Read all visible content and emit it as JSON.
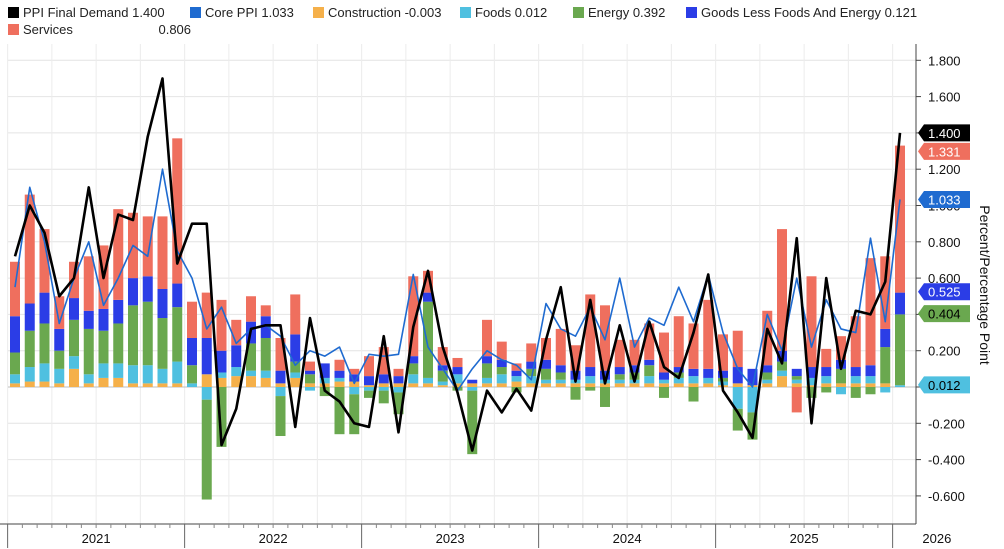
{
  "legend": [
    {
      "key": "ppi",
      "label": "PPI Final Demand",
      "value": "1.400",
      "color": "#000000"
    },
    {
      "key": "core",
      "label": "Core PPI",
      "value": "1.033",
      "color": "#1f6bd0"
    },
    {
      "key": "construction",
      "label": "Construction",
      "value": "-0.003",
      "color": "#f5b04a"
    },
    {
      "key": "foods",
      "label": "Foods",
      "value": "0.012",
      "color": "#4fc0e0"
    },
    {
      "key": "energy",
      "label": "Energy",
      "value": "0.392",
      "color": "#6aa84f"
    },
    {
      "key": "goods",
      "label": "Goods Less Foods And Energy",
      "value": "0.121",
      "color": "#2b3de6"
    },
    {
      "key": "services",
      "label": "Services",
      "value": "0.806",
      "color": "#ef6f5e"
    }
  ],
  "chart_data": {
    "type": "bar",
    "stacked": true,
    "ylabel": "Percent/Percentage Point",
    "ylim": [
      -0.75,
      1.95
    ],
    "yticks": [
      "1.800",
      "1.600",
      "1.400",
      "1.200",
      "1.000",
      "0.800",
      "0.600",
      "0.400",
      "0.200",
      "0.000",
      "-0.200",
      "-0.400",
      "-0.600"
    ],
    "grid": true,
    "y_axis_side": "right",
    "x_labels": [
      "2021",
      "2022",
      "2023",
      "2024",
      "2025",
      "2026"
    ],
    "x_start": "2021-01",
    "x_end": "2026-01",
    "categories": [
      "2021-01",
      "2021-02",
      "2021-03",
      "2021-04",
      "2021-05",
      "2021-06",
      "2021-07",
      "2021-08",
      "2021-09",
      "2021-10",
      "2021-11",
      "2021-12",
      "2022-01",
      "2022-02",
      "2022-03",
      "2022-04",
      "2022-05",
      "2022-06",
      "2022-07",
      "2022-08",
      "2022-09",
      "2022-10",
      "2022-11",
      "2022-12",
      "2023-01",
      "2023-02",
      "2023-03",
      "2023-04",
      "2023-05",
      "2023-06",
      "2023-07",
      "2023-08",
      "2023-09",
      "2023-10",
      "2023-11",
      "2023-12",
      "2024-01",
      "2024-02",
      "2024-03",
      "2024-04",
      "2024-05",
      "2024-06",
      "2024-07",
      "2024-08",
      "2024-09",
      "2024-10",
      "2024-11",
      "2024-12",
      "2025-01",
      "2025-02",
      "2025-03",
      "2025-04",
      "2025-05",
      "2025-06",
      "2025-07",
      "2025-08",
      "2025-09",
      "2025-10",
      "2025-11",
      "2025-12",
      "2026-01"
    ],
    "bar_series": [
      {
        "key": "construction",
        "color": "#f5b04a",
        "values": [
          0.02,
          0.03,
          0.03,
          0.02,
          0.1,
          0.02,
          0.05,
          0.05,
          0.02,
          0.02,
          0.02,
          0.02,
          0.0,
          0.07,
          0.05,
          0.06,
          0.06,
          0.05,
          0.02,
          0.05,
          0.02,
          0.02,
          0.03,
          0.03,
          0.01,
          0.02,
          0.02,
          0.02,
          0.02,
          0.01,
          0.02,
          0.02,
          0.02,
          0.02,
          0.03,
          0.02,
          0.02,
          0.02,
          0.02,
          0.02,
          0.02,
          0.02,
          0.02,
          0.02,
          0.02,
          0.02,
          0.02,
          0.02,
          0.01,
          0.02,
          0.01,
          0.02,
          0.06,
          0.02,
          0.01,
          0.02,
          0.02,
          0.02,
          0.02,
          0.02,
          0.0
        ]
      },
      {
        "key": "foods",
        "color": "#4fc0e0",
        "values": [
          0.05,
          0.08,
          0.1,
          0.08,
          0.07,
          0.05,
          0.08,
          0.08,
          0.1,
          0.1,
          0.08,
          0.12,
          0.02,
          -0.07,
          0.03,
          0.05,
          0.03,
          0.04,
          -0.05,
          0.03,
          -0.02,
          0.03,
          0.02,
          -0.04,
          -0.02,
          -0.02,
          -0.03,
          0.05,
          0.03,
          0.02,
          0.05,
          -0.02,
          0.03,
          0.05,
          0.03,
          0.04,
          0.02,
          0.02,
          0.02,
          0.04,
          0.02,
          0.02,
          0.02,
          0.04,
          0.02,
          0.03,
          0.04,
          0.03,
          0.02,
          -0.12,
          -0.14,
          0.02,
          0.03,
          0.02,
          0.04,
          0.04,
          -0.04,
          0.04,
          0.04,
          -0.03,
          0.01
        ]
      },
      {
        "key": "energy",
        "color": "#6aa84f",
        "values": [
          0.12,
          0.2,
          0.22,
          0.1,
          0.2,
          0.25,
          0.18,
          0.22,
          0.33,
          0.35,
          0.28,
          0.3,
          0.1,
          -0.55,
          -0.33,
          0.0,
          0.15,
          0.18,
          -0.22,
          0.06,
          0.05,
          -0.05,
          -0.26,
          -0.22,
          -0.04,
          -0.07,
          -0.12,
          0.06,
          0.42,
          0.06,
          -0.02,
          -0.35,
          0.08,
          0.04,
          -0.03,
          0.04,
          0.06,
          0.04,
          -0.07,
          -0.02,
          -0.11,
          0.03,
          0.04,
          0.06,
          -0.06,
          0.03,
          -0.08,
          0.0,
          0.02,
          -0.12,
          -0.15,
          0.04,
          0.05,
          0.02,
          -0.06,
          -0.03,
          0.08,
          -0.06,
          -0.04,
          0.2,
          0.39
        ]
      },
      {
        "key": "goods",
        "color": "#2b3de6",
        "values": [
          0.2,
          0.15,
          0.17,
          0.12,
          0.12,
          0.1,
          0.12,
          0.13,
          0.15,
          0.14,
          0.16,
          0.13,
          0.15,
          0.2,
          0.12,
          0.12,
          0.12,
          0.12,
          0.07,
          0.15,
          0.02,
          0.08,
          0.04,
          0.04,
          0.05,
          0.05,
          0.04,
          0.04,
          0.05,
          0.03,
          0.04,
          0.02,
          0.04,
          0.04,
          0.03,
          0.04,
          0.05,
          0.04,
          0.05,
          0.05,
          0.05,
          0.04,
          0.04,
          0.03,
          0.04,
          0.03,
          0.04,
          0.05,
          0.04,
          0.09,
          0.09,
          0.04,
          0.06,
          0.04,
          0.06,
          0.05,
          0.05,
          0.05,
          0.06,
          0.1,
          0.12
        ]
      },
      {
        "key": "services",
        "color": "#ef6f5e",
        "values": [
          0.3,
          0.6,
          0.35,
          0.18,
          0.2,
          0.3,
          0.35,
          0.5,
          0.36,
          0.33,
          0.4,
          0.8,
          0.2,
          0.25,
          0.28,
          0.14,
          0.14,
          0.06,
          0.18,
          0.22,
          0.05,
          0.0,
          0.06,
          0.03,
          0.11,
          0.15,
          0.04,
          0.44,
          0.12,
          0.1,
          0.05,
          0.0,
          0.2,
          0.1,
          0.04,
          0.1,
          0.12,
          0.2,
          0.14,
          0.4,
          0.36,
          0.15,
          0.14,
          0.2,
          0.22,
          0.28,
          0.25,
          0.38,
          0.2,
          0.2,
          0.0,
          0.3,
          0.67,
          -0.14,
          0.5,
          0.1,
          0.13,
          0.28,
          0.59,
          0.4,
          0.81
        ]
      }
    ],
    "line_series": [
      {
        "key": "ppi",
        "color": "#000000",
        "values": [
          0.72,
          1.0,
          0.85,
          0.5,
          0.6,
          1.1,
          0.6,
          0.95,
          0.92,
          1.38,
          1.7,
          0.68,
          0.9,
          0.9,
          -0.32,
          -0.12,
          0.32,
          0.34,
          0.34,
          -0.22,
          0.38,
          -0.02,
          -0.08,
          -0.2,
          -0.22,
          0.28,
          -0.25,
          0.33,
          0.64,
          0.22,
          -0.03,
          -0.35,
          -0.02,
          -0.14,
          -0.01,
          -0.13,
          0.26,
          0.55,
          0.03,
          0.48,
          0.02,
          0.34,
          0.03,
          0.36,
          0.11,
          0.05,
          0.3,
          0.62,
          -0.02,
          -0.14,
          -0.28,
          0.32,
          0.13,
          0.82,
          -0.2,
          0.6,
          0.1,
          0.42,
          0.4,
          0.58,
          1.4
        ]
      },
      {
        "key": "core",
        "color": "#1f6bd0",
        "values": [
          0.55,
          1.1,
          0.8,
          0.35,
          0.6,
          0.8,
          0.45,
          0.6,
          0.78,
          0.72,
          1.2,
          0.75,
          0.6,
          0.32,
          0.44,
          0.24,
          0.32,
          0.34,
          0.28,
          0.12,
          0.2,
          0.17,
          0.22,
          0.02,
          0.18,
          0.17,
          0.18,
          0.62,
          0.22,
          0.1,
          -0.02,
          0.1,
          0.2,
          0.15,
          0.12,
          0.04,
          0.46,
          0.32,
          0.28,
          0.44,
          0.26,
          0.6,
          0.22,
          0.38,
          0.34,
          0.55,
          0.36,
          0.62,
          0.3,
          0.1,
          0.0,
          0.4,
          0.2,
          0.6,
          0.22,
          0.48,
          0.32,
          0.3,
          0.82,
          0.36,
          1.033
        ]
      }
    ],
    "value_badges": [
      {
        "text": "1.400",
        "value": 1.4,
        "bg": "#000000",
        "fg": "#ffffff"
      },
      {
        "text": "1.331",
        "value": 1.331,
        "bg": "#ef6f5e",
        "fg": "#ffffff"
      },
      {
        "text": "1.033",
        "value": 1.033,
        "bg": "#1f6bd0",
        "fg": "#ffffff"
      },
      {
        "text": "0.525",
        "value": 0.525,
        "bg": "#2b3de6",
        "fg": "#ffffff"
      },
      {
        "text": "0.404",
        "value": 0.404,
        "bg": "#6aa84f",
        "fg": "#000000"
      },
      {
        "text": "0.012",
        "value": 0.012,
        "bg": "#4fc0e0",
        "fg": "#000000"
      }
    ]
  }
}
